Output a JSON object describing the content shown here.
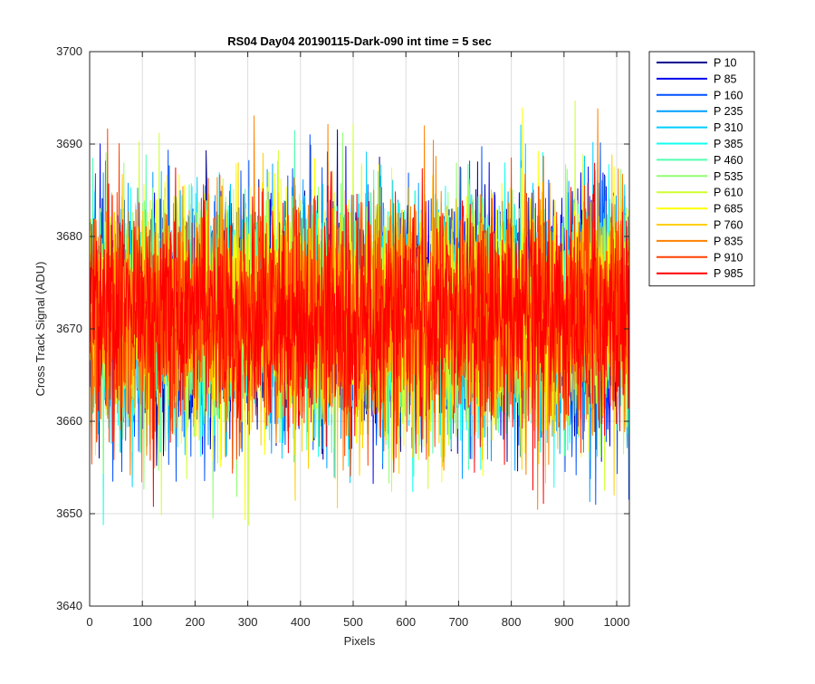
{
  "chart_data": {
    "type": "line",
    "title": "RS04 Day04 20190115-Dark-090 int time = 5 sec",
    "xlabel": "Pixels",
    "ylabel": "Cross Track Signal (ADU)",
    "xlim": [
      0,
      1024
    ],
    "ylim": [
      3640,
      3700
    ],
    "xticks": [
      0,
      100,
      200,
      300,
      400,
      500,
      600,
      700,
      800,
      900,
      1000
    ],
    "yticks": [
      3640,
      3650,
      3660,
      3670,
      3680,
      3690,
      3700
    ],
    "grid": true,
    "legend_position": "outside-top-right",
    "x_sampling": {
      "start": 0,
      "end": 1024,
      "count": 1025
    },
    "series": [
      {
        "name": "P 10",
        "color": "#00008f",
        "mean": 3671.5,
        "std": 6.2
      },
      {
        "name": "P 85",
        "color": "#0000ef",
        "mean": 3671.5,
        "std": 6.2
      },
      {
        "name": "P 160",
        "color": "#0050ff",
        "mean": 3671.5,
        "std": 6.2
      },
      {
        "name": "P 235",
        "color": "#009fff",
        "mean": 3671.5,
        "std": 6.2
      },
      {
        "name": "P 310",
        "color": "#00cfff",
        "mean": 3671.5,
        "std": 6.2
      },
      {
        "name": "P 385",
        "color": "#10ffef",
        "mean": 3671.5,
        "std": 6.2
      },
      {
        "name": "P 460",
        "color": "#50ffaf",
        "mean": 3671.5,
        "std": 6.2
      },
      {
        "name": "P 535",
        "color": "#8fff70",
        "mean": 3671.5,
        "std": 6.2
      },
      {
        "name": "P 610",
        "color": "#cfff30",
        "mean": 3671.5,
        "std": 6.2
      },
      {
        "name": "P 685",
        "color": "#ffff00",
        "mean": 3671.5,
        "std": 6.2
      },
      {
        "name": "P 760",
        "color": "#ffcf00",
        "mean": 3671.5,
        "std": 6.2
      },
      {
        "name": "P 835",
        "color": "#ff8000",
        "mean": 3671.5,
        "std": 6.2
      },
      {
        "name": "P 910",
        "color": "#ff4000",
        "mean": 3671.5,
        "std": 6.2
      },
      {
        "name": "P 985",
        "color": "#ff0000",
        "mean": 3671.5,
        "std": 6.2
      }
    ]
  }
}
